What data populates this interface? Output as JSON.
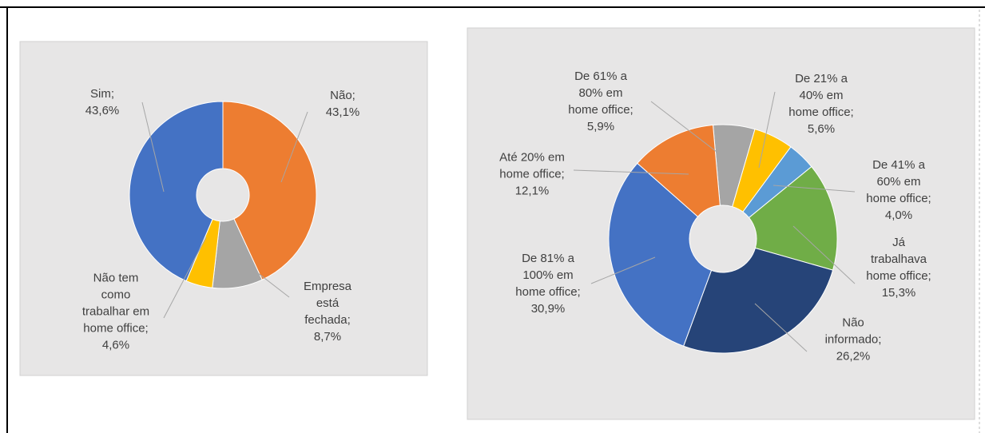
{
  "chart_data": [
    {
      "type": "donut",
      "values": [
        43.1,
        8.7,
        4.6,
        43.6
      ],
      "value_labels": [
        "Não; 43,1%",
        "Empresa está fechada; 8,7%",
        "Não tem como trabalhar em home office; 4,6%",
        "Sim; 43,6%"
      ],
      "colors": [
        "#ED7D31",
        "#A5A5A5",
        "#FFC000",
        "#4472C4"
      ]
    },
    {
      "type": "donut",
      "values": [
        5.9,
        5.6,
        4.0,
        15.3,
        26.2,
        30.9,
        12.1
      ],
      "value_labels": [
        "De 61% a 80% em home office; 5,9%",
        "De 21% a 40% em home office; 5,6%",
        "De 41% a 60% em home office; 4,0%",
        "Já trabalhava home office; 15,3%",
        "Não informado; 26,2%",
        "De 81% a 100% em home office; 30,9%",
        "Até 20% em home office; 12,1%"
      ],
      "colors": [
        "#A5A5A5",
        "#FFC000",
        "#5B9BD5",
        "#70AD47",
        "#264478",
        "#4472C4",
        "#ED7D31"
      ]
    }
  ]
}
